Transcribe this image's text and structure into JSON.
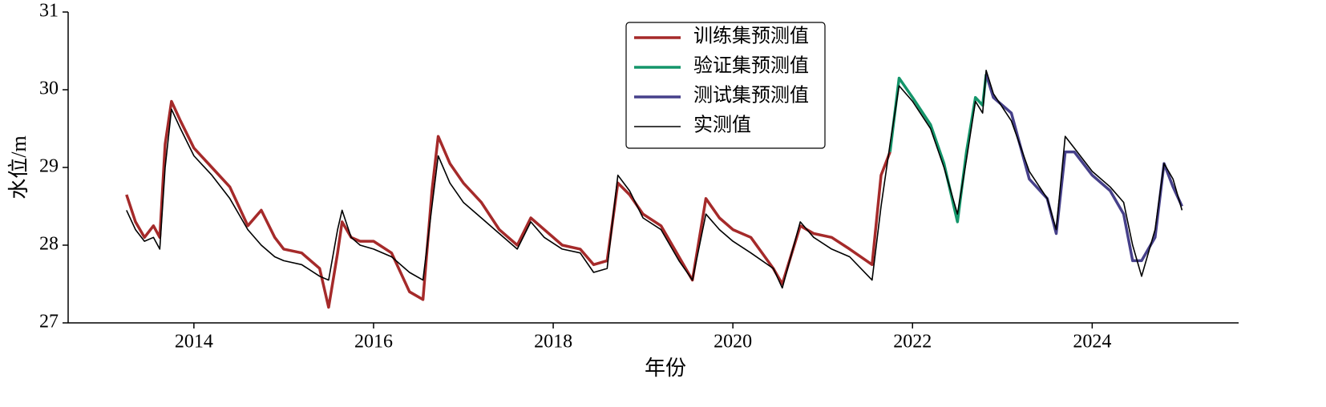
{
  "chart_data": {
    "type": "line",
    "xlabel": "年份",
    "ylabel": "水位/m",
    "x": [
      2013.25,
      2013.35,
      2013.45,
      2013.55,
      2013.62,
      2013.68,
      2013.75,
      2013.85,
      2014.0,
      2014.2,
      2014.4,
      2014.6,
      2014.75,
      2014.9,
      2015.0,
      2015.2,
      2015.4,
      2015.5,
      2015.6,
      2015.65,
      2015.75,
      2015.85,
      2016.0,
      2016.2,
      2016.4,
      2016.55,
      2016.65,
      2016.72,
      2016.85,
      2017.0,
      2017.2,
      2017.4,
      2017.6,
      2017.75,
      2017.9,
      2018.1,
      2018.3,
      2018.45,
      2018.6,
      2018.72,
      2018.85,
      2019.0,
      2019.2,
      2019.4,
      2019.55,
      2019.7,
      2019.85,
      2020.0,
      2020.2,
      2020.45,
      2020.55,
      2020.75,
      2020.9,
      2021.1,
      2021.3,
      2021.55,
      2021.65,
      2021.75,
      2021.85,
      2022.0,
      2022.2,
      2022.35,
      2022.5,
      2022.6,
      2022.7,
      2022.78,
      2022.82,
      2022.9,
      2023.1,
      2023.3,
      2023.5,
      2023.6,
      2023.7,
      2023.8,
      2024.0,
      2024.2,
      2024.35,
      2024.45,
      2024.55,
      2024.7,
      2024.8,
      2024.9,
      2025.0
    ],
    "series": [
      {
        "name": "训练集预测值",
        "color": "#a52a2a",
        "width": 3.5,
        "values": [
          28.65,
          28.3,
          28.1,
          28.25,
          28.1,
          29.3,
          29.85,
          29.6,
          29.25,
          29.0,
          28.75,
          28.25,
          28.45,
          28.1,
          27.95,
          27.9,
          27.7,
          27.2,
          27.9,
          28.3,
          28.1,
          28.05,
          28.05,
          27.9,
          27.4,
          27.3,
          28.7,
          29.4,
          29.05,
          28.8,
          28.55,
          28.2,
          28.0,
          28.35,
          28.2,
          28.0,
          27.95,
          27.75,
          27.8,
          28.8,
          28.65,
          28.4,
          28.25,
          27.85,
          27.55,
          28.6,
          28.35,
          28.2,
          28.1,
          27.7,
          27.5,
          28.25,
          28.15,
          28.1,
          27.95,
          27.75,
          28.9,
          29.2,
          null,
          null,
          null,
          null,
          null,
          null,
          null,
          null,
          null,
          null,
          null,
          null,
          null,
          null,
          null,
          null,
          null,
          null,
          null,
          null,
          null,
          null,
          null,
          null,
          null
        ]
      },
      {
        "name": "验证集预测值",
        "color": "#14956a",
        "width": 3.5,
        "values": [
          null,
          null,
          null,
          null,
          null,
          null,
          null,
          null,
          null,
          null,
          null,
          null,
          null,
          null,
          null,
          null,
          null,
          null,
          null,
          null,
          null,
          null,
          null,
          null,
          null,
          null,
          null,
          null,
          null,
          null,
          null,
          null,
          null,
          null,
          null,
          null,
          null,
          null,
          null,
          null,
          null,
          null,
          null,
          null,
          null,
          null,
          null,
          null,
          null,
          null,
          null,
          null,
          null,
          null,
          null,
          null,
          null,
          29.2,
          30.15,
          29.9,
          29.55,
          29.05,
          28.3,
          29.2,
          29.9,
          29.8,
          30.2,
          null,
          null,
          null,
          null,
          null,
          null,
          null,
          null,
          null,
          null,
          null,
          null,
          null,
          null,
          null,
          null
        ]
      },
      {
        "name": "测试集预测值",
        "color": "#46408a",
        "width": 3.5,
        "values": [
          null,
          null,
          null,
          null,
          null,
          null,
          null,
          null,
          null,
          null,
          null,
          null,
          null,
          null,
          null,
          null,
          null,
          null,
          null,
          null,
          null,
          null,
          null,
          null,
          null,
          null,
          null,
          null,
          null,
          null,
          null,
          null,
          null,
          null,
          null,
          null,
          null,
          null,
          null,
          null,
          null,
          null,
          null,
          null,
          null,
          null,
          null,
          null,
          null,
          null,
          null,
          null,
          null,
          null,
          null,
          null,
          null,
          null,
          null,
          null,
          null,
          null,
          null,
          null,
          null,
          null,
          30.2,
          29.9,
          29.7,
          28.85,
          28.6,
          28.15,
          29.2,
          29.2,
          28.9,
          28.7,
          28.4,
          27.8,
          27.8,
          28.1,
          29.05,
          28.75,
          28.5
        ]
      },
      {
        "name": "实测值",
        "color": "#000000",
        "width": 1.6,
        "values": [
          28.45,
          28.2,
          28.05,
          28.1,
          27.95,
          29.0,
          29.75,
          29.5,
          29.15,
          28.9,
          28.6,
          28.2,
          28.0,
          27.85,
          27.8,
          27.75,
          27.6,
          27.55,
          28.2,
          28.45,
          28.1,
          28.0,
          27.95,
          27.85,
          27.65,
          27.55,
          28.5,
          29.15,
          28.8,
          28.55,
          28.35,
          28.15,
          27.95,
          28.3,
          28.1,
          27.95,
          27.9,
          27.65,
          27.7,
          28.9,
          28.7,
          28.35,
          28.2,
          27.8,
          27.55,
          28.4,
          28.2,
          28.05,
          27.9,
          27.7,
          27.45,
          28.3,
          28.1,
          27.95,
          27.85,
          27.55,
          28.5,
          29.3,
          30.05,
          29.85,
          29.5,
          29.0,
          28.4,
          29.1,
          29.85,
          29.7,
          30.25,
          29.95,
          29.6,
          28.95,
          28.6,
          28.2,
          29.4,
          29.25,
          28.95,
          28.75,
          28.55,
          28.0,
          27.6,
          28.2,
          29.05,
          28.85,
          28.45
        ]
      }
    ],
    "xlim": [
      2012.6,
      2025.63
    ],
    "xticks": [
      2014,
      2016,
      2018,
      2020,
      2022,
      2024
    ],
    "ylim": [
      27,
      31
    ],
    "yticks": [
      27,
      28,
      29,
      30,
      31
    ],
    "legend": "upper center",
    "grid": false
  }
}
